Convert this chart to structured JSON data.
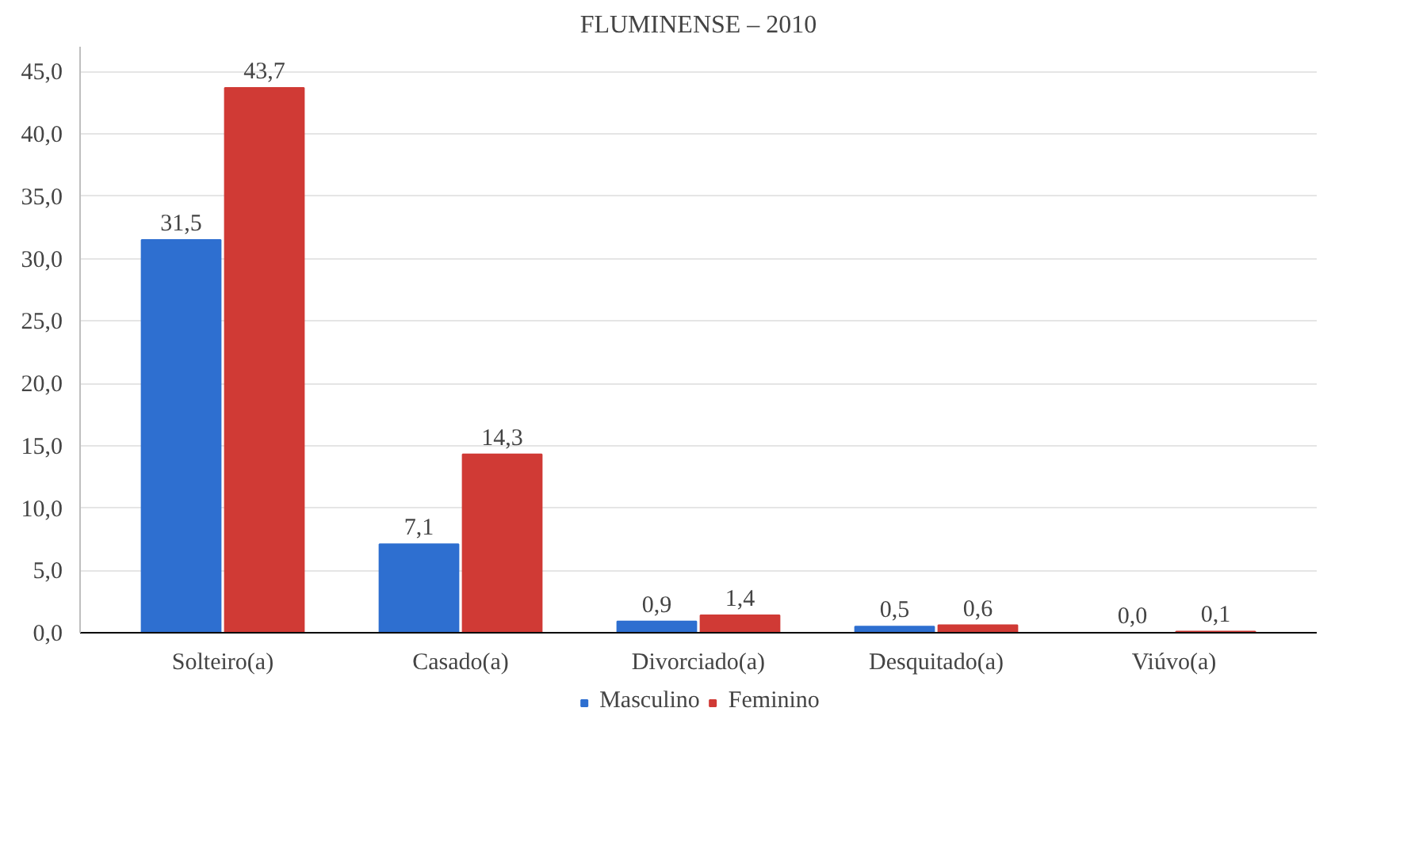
{
  "chart_data": {
    "type": "bar",
    "title": "FLUMINENSE – 2010",
    "categories": [
      "Solteiro(a)",
      "Casado(a)",
      "Divorciado(a)",
      "Desquitado(a)",
      "Viúvo(a)"
    ],
    "series": [
      {
        "name": "Masculino",
        "color": "#2e6fd0",
        "values": [
          31.5,
          7.1,
          0.9,
          0.5,
          0.0
        ]
      },
      {
        "name": "Feminino",
        "color": "#d03a35",
        "values": [
          43.7,
          14.3,
          1.4,
          0.6,
          0.1
        ]
      }
    ],
    "ylim": [
      0,
      47
    ],
    "yticks": [
      {
        "value": 0,
        "label": "0,0"
      },
      {
        "value": 5,
        "label": "5,0"
      },
      {
        "value": 10,
        "label": "10,0"
      },
      {
        "value": 15,
        "label": "15,0"
      },
      {
        "value": 20,
        "label": "20,0"
      },
      {
        "value": 25,
        "label": "25,0"
      },
      {
        "value": 30,
        "label": "30,0"
      },
      {
        "value": 35,
        "label": "35,0"
      },
      {
        "value": 40,
        "label": "40,0"
      },
      {
        "value": 45,
        "label": "45,0"
      }
    ],
    "value_labels": [
      [
        "31,5",
        "7,1",
        "0,9",
        "0,5",
        "0,0"
      ],
      [
        "43,7",
        "14,3",
        "1,4",
        "0,6",
        "0,1"
      ]
    ],
    "grid": "y",
    "legend": "bottom"
  }
}
